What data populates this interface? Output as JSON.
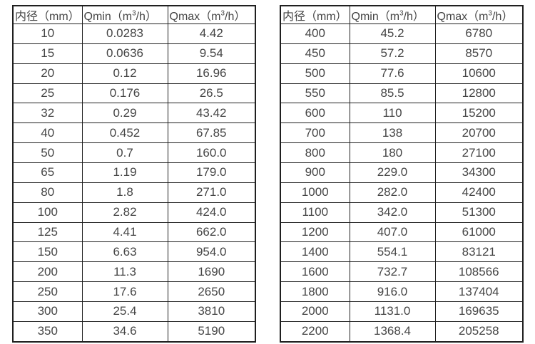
{
  "colors": {
    "background": "#ffffff",
    "border": "#1f1f1f",
    "text": "#454545"
  },
  "tables": [
    {
      "id": "left",
      "headers": [
        "内径（mm）",
        "Qmin（m³/h）",
        "Qmax（m³/h）"
      ],
      "rows": [
        [
          "10",
          "0.0283",
          "4.42"
        ],
        [
          "15",
          "0.0636",
          "9.54"
        ],
        [
          "20",
          "0.12",
          "16.96"
        ],
        [
          "25",
          "0.176",
          "26.5"
        ],
        [
          "32",
          "0.29",
          "43.42"
        ],
        [
          "40",
          "0.452",
          "67.85"
        ],
        [
          "50",
          "0.7",
          "160.0"
        ],
        [
          "65",
          "1.19",
          "179.0"
        ],
        [
          "80",
          "1.8",
          "271.0"
        ],
        [
          "100",
          "2.82",
          "424.0"
        ],
        [
          "125",
          "4.41",
          "662.0"
        ],
        [
          "150",
          "6.63",
          "954.0"
        ],
        [
          "200",
          "11.3",
          "1690"
        ],
        [
          "250",
          "17.6",
          "2650"
        ],
        [
          "300",
          "25.4",
          "3810"
        ],
        [
          "350",
          "34.6",
          "5190"
        ]
      ]
    },
    {
      "id": "right",
      "headers": [
        "内径（mm）",
        "Qmin（m³/h）",
        "Qmax（m³/h）"
      ],
      "rows": [
        [
          "400",
          "45.2",
          "6780"
        ],
        [
          "450",
          "57.2",
          "8570"
        ],
        [
          "500",
          "77.6",
          "10600"
        ],
        [
          "550",
          "85.5",
          "12800"
        ],
        [
          "600",
          "110",
          "15200"
        ],
        [
          "700",
          "138",
          "20700"
        ],
        [
          "800",
          "180",
          "27100"
        ],
        [
          "900",
          "229.0",
          "34300"
        ],
        [
          "1000",
          "282.0",
          "42400"
        ],
        [
          "1100",
          "342.0",
          "51300"
        ],
        [
          "1200",
          "407.0",
          "61000"
        ],
        [
          "1400",
          "554.1",
          "83121"
        ],
        [
          "1600",
          "732.7",
          "108566"
        ],
        [
          "1800",
          "916.0",
          "137404"
        ],
        [
          "2000",
          "1131.0",
          "169635"
        ],
        [
          "2200",
          "1368.4",
          "205258"
        ]
      ]
    }
  ]
}
